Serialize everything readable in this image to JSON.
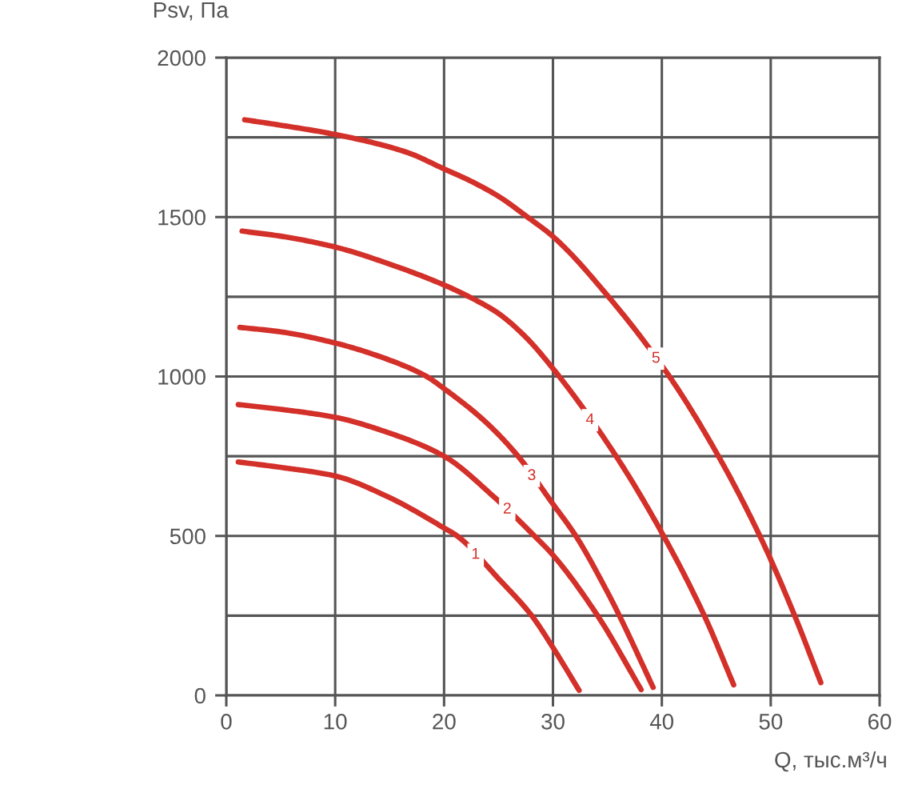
{
  "chart_data": {
    "type": "line",
    "xlabel": "Q, тыс.м³/ч",
    "ylabel": "Psv, Па",
    "xlim": [
      0,
      60
    ],
    "ylim": [
      0,
      2000
    ],
    "xticks": [
      0,
      10,
      20,
      30,
      40,
      50,
      60
    ],
    "yticks": [
      0,
      {
        "value": 250,
        "label": null
      },
      500,
      {
        "value": 750,
        "label": null
      },
      1000,
      {
        "value": 1250,
        "label": null
      },
      1500,
      {
        "value": 1750,
        "label": null
      },
      2000
    ],
    "grid": true,
    "series": [
      {
        "color": "#d3302a",
        "x": [
          1.1,
          5,
          10,
          14.7,
          20,
          21.2,
          25,
          28.05,
          30,
          32.4
        ],
        "values": [
          732,
          715,
          688,
          625,
          525,
          500,
          366,
          250,
          150,
          16
        ]
      },
      {
        "color": "#d3302a",
        "x": [
          1.1,
          5,
          10,
          14.7,
          20,
          24.5,
          28.3,
          30,
          34.1,
          38.1
        ],
        "values": [
          912,
          897,
          872,
          826,
          750,
          625,
          500,
          440,
          250,
          18
        ]
      },
      {
        "color": "#d3302a",
        "x": [
          1.25,
          5,
          10,
          14.95,
          18.4,
          20,
          23.7,
          26.8,
          30,
          32.1,
          35,
          36.1,
          39.2
        ],
        "values": [
          1154,
          1140,
          1105,
          1052,
          1000,
          962,
          861,
          750,
          600,
          500,
          324,
          250,
          25
        ]
      },
      {
        "color": "#d3302a",
        "x": [
          1.45,
          5,
          10,
          14.95,
          20,
          22.3,
          24.9,
          27.4,
          30,
          35.8,
          40,
          43.9,
          46.6
        ],
        "values": [
          1456,
          1440,
          1406,
          1353,
          1287,
          1250,
          1200,
          1127,
          1025,
          750,
          510,
          250,
          33
        ]
      },
      {
        "color": "#d3302a",
        "x": [
          1.69,
          5,
          10,
          16.5,
          20,
          22.5,
          25,
          27.66,
          30,
          35.1,
          40.7,
          45.2,
          49.0,
          52.2,
          54.6
        ],
        "values": [
          1805,
          1788,
          1759,
          1704,
          1651,
          1612,
          1565,
          1500,
          1439,
          1250,
          1000,
          750,
          500,
          250,
          40
        ]
      }
    ],
    "annotations": [
      {
        "text": "1",
        "x": 22.9,
        "y": 441
      },
      {
        "text": "2",
        "x": 25.8,
        "y": 583
      },
      {
        "text": "3",
        "x": 28.05,
        "y": 688
      },
      {
        "text": "4",
        "x": 33.4,
        "y": 863
      },
      {
        "text": "5",
        "x": 39.46,
        "y": 1056
      }
    ]
  }
}
